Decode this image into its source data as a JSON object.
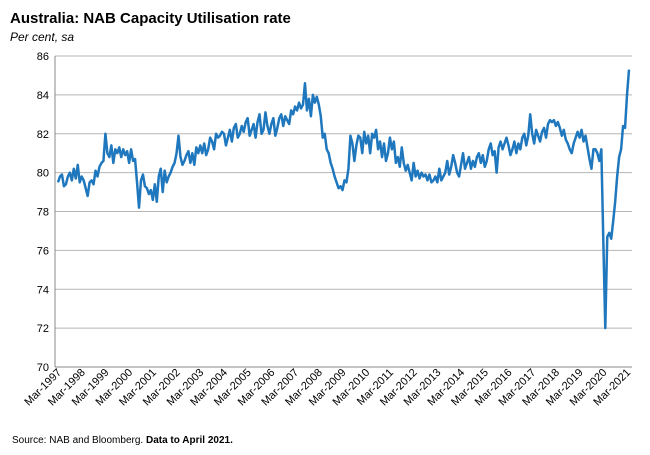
{
  "chart_data": {
    "type": "line",
    "title": "Australia: NAB Capacity Utilisation rate",
    "subtitle": "Per cent, sa",
    "source": "Source: NAB and Bloomberg.",
    "source_note": "Data to April 2021.",
    "ylim": [
      70,
      86
    ],
    "yticks": [
      70,
      72,
      74,
      76,
      78,
      80,
      82,
      84,
      86
    ],
    "grid": true,
    "categories": [
      "Mar-1997",
      null,
      null,
      null,
      null,
      null,
      null,
      null,
      null,
      null,
      null,
      null,
      "Mar-1998",
      null,
      null,
      null,
      null,
      null,
      null,
      null,
      null,
      null,
      null,
      null,
      "Mar-1999",
      null,
      null,
      null,
      null,
      null,
      null,
      null,
      null,
      null,
      null,
      null,
      "Mar-2000",
      null,
      null,
      null,
      null,
      null,
      null,
      null,
      null,
      null,
      null,
      null,
      "Mar-2001",
      null,
      null,
      null,
      null,
      null,
      null,
      null,
      null,
      null,
      null,
      null,
      "Mar-2002",
      null,
      null,
      null,
      null,
      null,
      null,
      null,
      null,
      null,
      null,
      null,
      "Mar-2003",
      null,
      null,
      null,
      null,
      null,
      null,
      null,
      null,
      null,
      null,
      null,
      "Mar-2004",
      null,
      null,
      null,
      null,
      null,
      null,
      null,
      null,
      null,
      null,
      null,
      "Mar-2005",
      null,
      null,
      null,
      null,
      null,
      null,
      null,
      null,
      null,
      null,
      null,
      "Mar-2006",
      null,
      null,
      null,
      null,
      null,
      null,
      null,
      null,
      null,
      null,
      null,
      "Mar-2007",
      null,
      null,
      null,
      null,
      null,
      null,
      null,
      null,
      null,
      null,
      null,
      "Mar-2008",
      null,
      null,
      null,
      null,
      null,
      null,
      null,
      null,
      null,
      null,
      null,
      "Mar-2009",
      null,
      null,
      null,
      null,
      null,
      null,
      null,
      null,
      null,
      null,
      null,
      "Mar-2010",
      null,
      null,
      null,
      null,
      null,
      null,
      null,
      null,
      null,
      null,
      null,
      "Mar-2011",
      null,
      null,
      null,
      null,
      null,
      null,
      null,
      null,
      null,
      null,
      null,
      "Mar-2012",
      null,
      null,
      null,
      null,
      null,
      null,
      null,
      null,
      null,
      null,
      null,
      "Mar-2013",
      null,
      null,
      null,
      null,
      null,
      null,
      null,
      null,
      null,
      null,
      null,
      "Mar-2014",
      null,
      null,
      null,
      null,
      null,
      null,
      null,
      null,
      null,
      null,
      null,
      "Mar-2015",
      null,
      null,
      null,
      null,
      null,
      null,
      null,
      null,
      null,
      null,
      null,
      "Mar-2016",
      null,
      null,
      null,
      null,
      null,
      null,
      null,
      null,
      null,
      null,
      null,
      "Mar-2017",
      null,
      null,
      null,
      null,
      null,
      null,
      null,
      null,
      null,
      null,
      null,
      "Mar-2018",
      null,
      null,
      null,
      null,
      null,
      null,
      null,
      null,
      null,
      null,
      null,
      "Mar-2019",
      null,
      null,
      null,
      null,
      null,
      null,
      null,
      null,
      null,
      null,
      null,
      "Mar-2020",
      null,
      null,
      null,
      null,
      null,
      null,
      null,
      null,
      null,
      null,
      null,
      "Mar-2021",
      null
    ],
    "series": [
      {
        "name": "NAB Capacity Utilisation rate",
        "color": "#1f77bd",
        "values": [
          79.5,
          79.8,
          79.9,
          79.3,
          79.4,
          79.8,
          80.0,
          79.6,
          80.2,
          79.7,
          80.4,
          79.5,
          79.8,
          79.6,
          79.2,
          78.8,
          79.5,
          79.6,
          79.4,
          80.1,
          79.8,
          80.3,
          80.5,
          80.6,
          82.0,
          81.0,
          80.8,
          81.4,
          80.5,
          81.2,
          81.0,
          81.3,
          80.8,
          81.2,
          80.9,
          81.1,
          80.5,
          81.2,
          80.6,
          80.7,
          79.5,
          78.2,
          79.6,
          79.9,
          79.3,
          79.2,
          78.9,
          79.1,
          78.6,
          79.4,
          78.5,
          79.8,
          80.2,
          79.0,
          80.1,
          79.5,
          79.8,
          80.0,
          80.3,
          80.5,
          81.0,
          81.9,
          80.8,
          80.4,
          80.6,
          80.9,
          81.1,
          80.5,
          81.0,
          80.4,
          81.3,
          81.0,
          81.4,
          81.0,
          81.5,
          80.9,
          81.2,
          81.8,
          81.6,
          81.2,
          82.0,
          81.8,
          81.9,
          82.1,
          82.0,
          81.4,
          81.8,
          82.2,
          81.6,
          82.3,
          82.5,
          81.8,
          82.0,
          82.4,
          82.1,
          82.6,
          82.8,
          81.9,
          82.2,
          82.5,
          81.8,
          82.6,
          83.0,
          82.0,
          82.2,
          83.1,
          82.4,
          82.0,
          82.5,
          82.8,
          81.9,
          82.3,
          82.8,
          83.0,
          82.4,
          82.9,
          82.7,
          82.5,
          83.2,
          83.0,
          83.4,
          83.2,
          83.6,
          83.3,
          83.5,
          84.6,
          83.2,
          83.8,
          82.9,
          84.0,
          83.6,
          83.9,
          83.5,
          82.9,
          81.8,
          82.0,
          81.2,
          81.0,
          80.5,
          80.2,
          79.8,
          79.5,
          79.2,
          79.3,
          79.1,
          79.6,
          79.5,
          80.2,
          81.9,
          81.5,
          80.6,
          81.4,
          81.9,
          81.8,
          81.0,
          82.1,
          81.5,
          81.9,
          81.0,
          82.0,
          81.8,
          82.2,
          81.2,
          81.6,
          80.8,
          81.5,
          80.6,
          81.0,
          81.8,
          81.2,
          81.6,
          80.5,
          80.8,
          80.3,
          81.3,
          80.5,
          80.1,
          80.4,
          80.0,
          79.6,
          80.5,
          79.8,
          80.1,
          79.7,
          80.0,
          79.8,
          79.9,
          79.6,
          79.9,
          79.5,
          79.6,
          79.8,
          79.5,
          80.2,
          79.6,
          79.8,
          80.0,
          80.6,
          79.9,
          80.3,
          80.9,
          80.5,
          80.0,
          79.8,
          80.4,
          81.0,
          80.2,
          80.5,
          80.8,
          80.2,
          80.6,
          80.3,
          80.8,
          81.0,
          80.5,
          80.9,
          80.3,
          80.6,
          81.2,
          81.5,
          80.9,
          81.1,
          80.0,
          81.3,
          81.6,
          81.2,
          81.5,
          81.8,
          81.4,
          80.9,
          81.2,
          81.6,
          81.0,
          81.5,
          81.2,
          81.8,
          82.0,
          81.4,
          81.9,
          83.0,
          82.0,
          81.5,
          82.2,
          81.9,
          81.6,
          82.1,
          82.3,
          81.8,
          82.5,
          82.7,
          82.6,
          82.7,
          82.4,
          82.6,
          82.3,
          81.9,
          82.2,
          81.7,
          81.5,
          81.2,
          81.0,
          81.5,
          81.8,
          82.1,
          81.8,
          82.2,
          81.6,
          81.9,
          81.3,
          80.7,
          80.2,
          81.2,
          81.2,
          81.0,
          80.6,
          81.2,
          76.5,
          72.0,
          76.7,
          76.9,
          76.6,
          77.5,
          78.5,
          79.8,
          80.8,
          81.2,
          82.4,
          82.3,
          84.0,
          85.3
        ]
      }
    ]
  }
}
